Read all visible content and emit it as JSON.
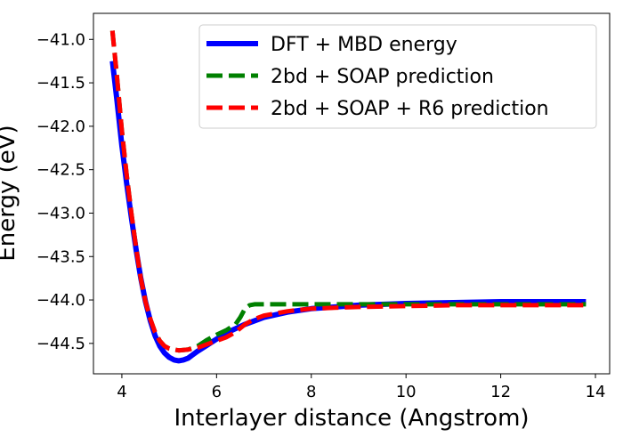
{
  "chart_data": {
    "type": "line",
    "title": "",
    "xlabel": "Interlayer distance (Angstrom)",
    "ylabel": "Energy (eV)",
    "xlim": [
      3.4,
      14.3
    ],
    "ylim": [
      -44.85,
      -40.7
    ],
    "xticks": [
      4,
      6,
      8,
      10,
      12,
      14
    ],
    "yticks": [
      -44.5,
      -44.0,
      -43.5,
      -43.0,
      -42.5,
      -42.0,
      -41.5,
      -41.0
    ],
    "ytick_labels": [
      "−44.5",
      "−44.0",
      "−43.5",
      "−43.0",
      "−42.5",
      "−42.0",
      "−41.5",
      "−41.0"
    ],
    "grid": false,
    "legend_position": "upper right",
    "series": [
      {
        "name": "DFT + MBD energy",
        "color": "#0000ff",
        "style": "solid",
        "x": [
          3.8,
          3.9,
          4.0,
          4.1,
          4.2,
          4.3,
          4.4,
          4.5,
          4.6,
          4.7,
          4.8,
          4.9,
          5.0,
          5.1,
          5.2,
          5.3,
          5.4,
          5.5,
          5.6,
          5.8,
          6.0,
          6.2,
          6.4,
          6.6,
          6.8,
          7.0,
          7.5,
          8.0,
          8.5,
          9.0,
          10.0,
          11.0,
          12.0,
          13.0,
          13.8
        ],
        "y": [
          -41.25,
          -41.72,
          -42.22,
          -42.65,
          -43.05,
          -43.42,
          -43.75,
          -44.02,
          -44.24,
          -44.41,
          -44.53,
          -44.61,
          -44.66,
          -44.69,
          -44.7,
          -44.69,
          -44.67,
          -44.63,
          -44.59,
          -44.52,
          -44.45,
          -44.38,
          -44.33,
          -44.28,
          -44.24,
          -44.2,
          -44.14,
          -44.1,
          -44.08,
          -44.06,
          -44.04,
          -44.03,
          -44.02,
          -44.02,
          -44.02
        ]
      },
      {
        "name": "2bd + SOAP prediction",
        "color": "#008000",
        "style": "dashed",
        "x": [
          3.8,
          3.9,
          4.0,
          4.1,
          4.2,
          4.3,
          4.4,
          4.5,
          4.6,
          4.7,
          4.8,
          4.9,
          5.0,
          5.2,
          5.4,
          5.6,
          5.8,
          6.0,
          6.2,
          6.4,
          6.5,
          6.6,
          6.7,
          6.8,
          7.0,
          7.5,
          8.0,
          9.0,
          10.0,
          11.0,
          12.0,
          13.0,
          13.8
        ],
        "y": [
          -40.9,
          -41.45,
          -42.05,
          -42.55,
          -43.0,
          -43.4,
          -43.75,
          -44.02,
          -44.22,
          -44.37,
          -44.47,
          -44.53,
          -44.56,
          -44.58,
          -44.57,
          -44.53,
          -44.46,
          -44.4,
          -44.35,
          -44.28,
          -44.2,
          -44.1,
          -44.06,
          -44.05,
          -44.05,
          -44.05,
          -44.05,
          -44.05,
          -44.05,
          -44.05,
          -44.05,
          -44.05,
          -44.05
        ]
      },
      {
        "name": "2bd + SOAP + R6 prediction",
        "color": "#ff0000",
        "style": "dashed",
        "x": [
          3.8,
          3.9,
          4.0,
          4.1,
          4.2,
          4.3,
          4.4,
          4.5,
          4.6,
          4.7,
          4.8,
          4.9,
          5.0,
          5.2,
          5.4,
          5.6,
          5.8,
          6.0,
          6.2,
          6.4,
          6.6,
          6.8,
          7.0,
          7.5,
          8.0,
          8.5,
          9.0,
          10.0,
          11.0,
          12.0,
          13.0,
          13.8
        ],
        "y": [
          -40.9,
          -41.45,
          -42.05,
          -42.55,
          -43.0,
          -43.4,
          -43.75,
          -44.02,
          -44.22,
          -44.37,
          -44.47,
          -44.53,
          -44.56,
          -44.58,
          -44.57,
          -44.55,
          -44.51,
          -44.47,
          -44.43,
          -44.37,
          -44.28,
          -44.22,
          -44.18,
          -44.13,
          -44.1,
          -44.09,
          -44.08,
          -44.07,
          -44.06,
          -44.06,
          -44.06,
          -44.06
        ]
      }
    ]
  }
}
